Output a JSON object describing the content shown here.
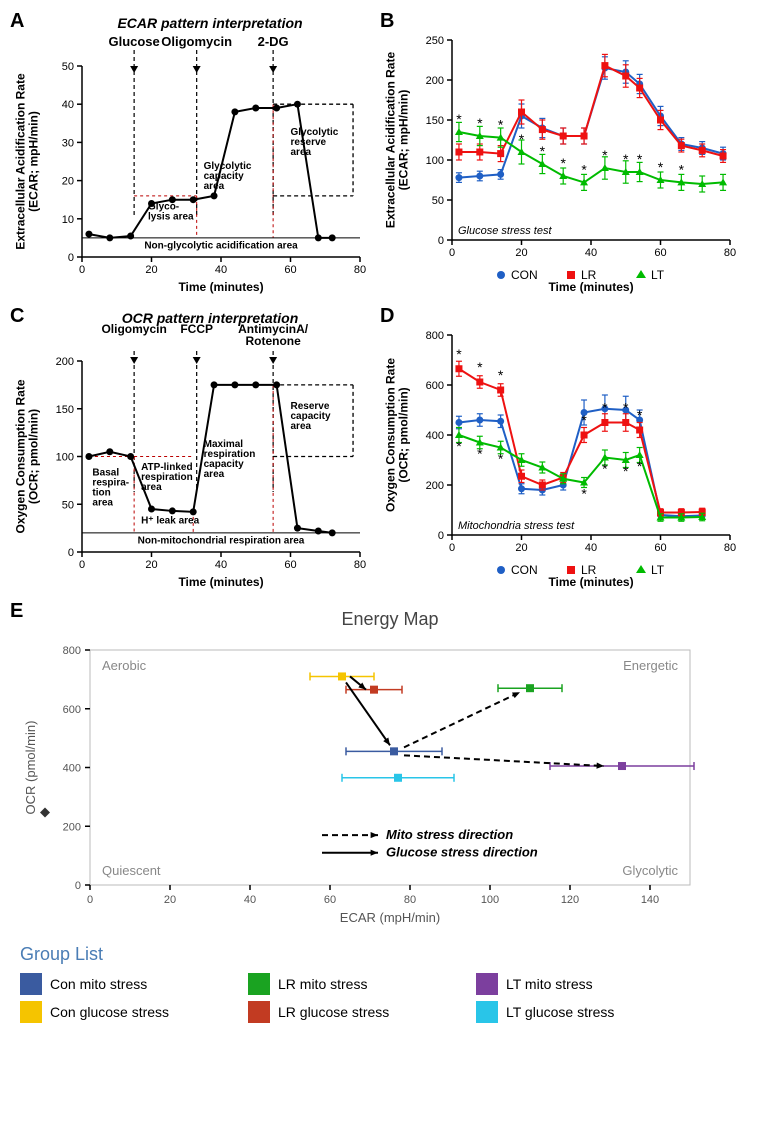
{
  "panelA": {
    "label": "A",
    "title": "ECAR pattern interpretation",
    "ylabel": "Extracellular Acidification Rate\n(ECAR; mpH/min)",
    "xlabel": "Time (minutes)",
    "xlim": [
      0,
      80
    ],
    "xticks": [
      0,
      20,
      40,
      60,
      80
    ],
    "ylim": [
      0,
      50
    ],
    "yticks": [
      0,
      10,
      20,
      30,
      40,
      50
    ],
    "injections": [
      {
        "label": "Glucose",
        "x": 15
      },
      {
        "label": "Oligomycin",
        "x": 33
      },
      {
        "label": "2-DG",
        "x": 55
      }
    ],
    "annotations": {
      "glyco": "Glyco-\nlysis area",
      "glycap": "Glycolytic\ncapacity\narea",
      "glyres": "Glycolytic\nreserve\narea",
      "nonglyc": "Non-glycolytic acidification area"
    },
    "series": {
      "color": "#000",
      "x": [
        2,
        8,
        14,
        20,
        26,
        32,
        38,
        44,
        50,
        56,
        62,
        68,
        72
      ],
      "y": [
        6,
        5,
        5.5,
        14,
        15,
        15,
        16,
        38,
        39,
        39,
        40,
        5,
        5
      ]
    }
  },
  "panelB": {
    "label": "B",
    "ylabel": "Extracellular Acidification Rate\n(ECAR; mpH/min)",
    "xlabel": "Time (minutes)",
    "note": "Glucose stress test",
    "xlim": [
      0,
      80
    ],
    "xticks": [
      0,
      20,
      40,
      60,
      80
    ],
    "ylim": [
      0,
      250
    ],
    "yticks": [
      0,
      50,
      100,
      150,
      200,
      250
    ],
    "legend": [
      {
        "name": "CON",
        "color": "#1f5fc5",
        "marker": "circle"
      },
      {
        "name": "LR",
        "color": "#e11",
        "marker": "square"
      },
      {
        "name": "LT",
        "color": "#0b0",
        "marker": "triangle"
      }
    ],
    "series": {
      "CON": {
        "x": [
          2,
          8,
          14,
          20,
          26,
          32,
          38,
          44,
          50,
          54,
          60,
          66,
          72,
          78
        ],
        "y": [
          78,
          80,
          82,
          155,
          140,
          130,
          130,
          215,
          210,
          195,
          155,
          120,
          115,
          108
        ],
        "err": [
          6,
          6,
          6,
          15,
          12,
          10,
          10,
          14,
          14,
          12,
          12,
          8,
          8,
          8
        ]
      },
      "LR": {
        "x": [
          2,
          8,
          14,
          20,
          26,
          32,
          38,
          44,
          50,
          54,
          60,
          66,
          72,
          78
        ],
        "y": [
          110,
          110,
          108,
          160,
          138,
          130,
          130,
          218,
          205,
          190,
          150,
          118,
          112,
          105
        ],
        "err": [
          10,
          10,
          10,
          15,
          12,
          10,
          10,
          14,
          14,
          12,
          12,
          8,
          8,
          8
        ]
      },
      "LT": {
        "x": [
          2,
          8,
          14,
          20,
          26,
          32,
          38,
          44,
          50,
          54,
          60,
          66,
          72,
          78
        ],
        "y": [
          135,
          130,
          128,
          110,
          95,
          80,
          72,
          90,
          85,
          85,
          75,
          72,
          70,
          72
        ],
        "err": [
          12,
          12,
          12,
          15,
          12,
          10,
          10,
          14,
          14,
          12,
          10,
          10,
          10,
          10
        ]
      }
    },
    "sig_x": [
      2,
      8,
      14,
      20,
      26,
      32,
      38,
      44,
      50,
      54,
      60,
      66
    ]
  },
  "panelC": {
    "label": "C",
    "title": "OCR pattern interpretation",
    "ylabel": "Oxygen Consumption Rate\n(OCR; pmol/min)",
    "xlabel": "Time (minutes)",
    "xlim": [
      0,
      80
    ],
    "xticks": [
      0,
      20,
      40,
      60,
      80
    ],
    "ylim": [
      0,
      200
    ],
    "yticks": [
      0,
      50,
      100,
      150,
      200
    ],
    "injections": [
      {
        "label": "Oligomycin",
        "x": 15
      },
      {
        "label": "FCCP",
        "x": 33
      },
      {
        "label": "AntimycinA/\nRotenone",
        "x": 55
      }
    ],
    "annotations": {
      "basal": "Basal\nrespira-\ntion\narea",
      "atp": "ATP-linked\nrespiration\narea",
      "hleak": "H⁺ leak area",
      "maxcap": "Maximal\nrespiration\ncapacity\narea",
      "reserve": "Reserve\ncapacity\narea",
      "nonmito": "Non-mitochondrial respiration area"
    },
    "series": {
      "color": "#000",
      "x": [
        2,
        8,
        14,
        20,
        26,
        32,
        38,
        44,
        50,
        56,
        62,
        68,
        72
      ],
      "y": [
        100,
        105,
        100,
        45,
        43,
        42,
        175,
        175,
        175,
        175,
        25,
        22,
        20
      ]
    }
  },
  "panelD": {
    "label": "D",
    "ylabel": "Oxygen Consumption Rate\n(OCR; pmol/min)",
    "xlabel": "Time (minutes)",
    "note": "Mitochondria stress test",
    "xlim": [
      0,
      80
    ],
    "xticks": [
      0,
      20,
      40,
      60,
      80
    ],
    "ylim": [
      0,
      800
    ],
    "yticks": [
      0,
      200,
      400,
      600,
      800
    ],
    "legend": [
      {
        "name": "CON",
        "color": "#1f5fc5",
        "marker": "circle"
      },
      {
        "name": "LR",
        "color": "#e11",
        "marker": "square"
      },
      {
        "name": "LT",
        "color": "#0b0",
        "marker": "triangle"
      }
    ],
    "series": {
      "CON": {
        "x": [
          2,
          8,
          14,
          20,
          26,
          32,
          38,
          44,
          50,
          54,
          60,
          66,
          72
        ],
        "y": [
          450,
          460,
          455,
          185,
          180,
          200,
          490,
          505,
          500,
          460,
          80,
          75,
          78
        ],
        "err": [
          25,
          25,
          25,
          20,
          20,
          20,
          50,
          55,
          55,
          40,
          15,
          15,
          15
        ]
      },
      "LR": {
        "x": [
          2,
          8,
          14,
          20,
          26,
          32,
          38,
          44,
          50,
          54,
          60,
          66,
          72
        ],
        "y": [
          665,
          612,
          580,
          235,
          200,
          230,
          400,
          450,
          450,
          420,
          90,
          90,
          92
        ],
        "err": [
          30,
          25,
          25,
          25,
          20,
          20,
          30,
          35,
          35,
          30,
          15,
          15,
          15
        ]
      },
      "LT": {
        "x": [
          2,
          8,
          14,
          20,
          26,
          32,
          38,
          44,
          50,
          54,
          60,
          66,
          72
        ],
        "y": [
          400,
          370,
          350,
          300,
          270,
          225,
          210,
          310,
          300,
          320,
          70,
          70,
          72
        ],
        "err": [
          30,
          25,
          25,
          25,
          22,
          20,
          20,
          30,
          30,
          30,
          15,
          15,
          15
        ]
      }
    },
    "sig_x": [
      2,
      8,
      14,
      38,
      44,
      50,
      54
    ]
  },
  "panelE": {
    "label": "E",
    "title": "Energy Map",
    "xlabel": "ECAR (mpH/min)",
    "ylabel": "OCR (pmol/min)",
    "xlim": [
      0,
      150
    ],
    "xticks": [
      0,
      20,
      40,
      60,
      80,
      100,
      120,
      140
    ],
    "ylim": [
      0,
      800
    ],
    "yticks": [
      0,
      200,
      400,
      600,
      800
    ],
    "corners": {
      "tl": "Aerobic",
      "tr": "Energetic",
      "bl": "Quiescent",
      "br": "Glycolytic"
    },
    "legend_arrows": [
      {
        "label": "Mito stress direction",
        "dashed": true
      },
      {
        "label": "Glucose stress direction",
        "dashed": false
      }
    ],
    "points": [
      {
        "id": "con-glucose",
        "color": "#f5c400",
        "x": 63,
        "y": 710,
        "ex": 8,
        "ey": 12
      },
      {
        "id": "lr-glucose",
        "color": "#c23b22",
        "x": 71,
        "y": 665,
        "ex": 7,
        "ey": 12
      },
      {
        "id": "con-mito",
        "color": "#3a5ba0",
        "x": 76,
        "y": 455,
        "ex": 12,
        "ey": 12
      },
      {
        "id": "lt-glucose",
        "color": "#29c5e8",
        "x": 77,
        "y": 365,
        "ex": 14,
        "ey": 12
      },
      {
        "id": "lr-mito",
        "color": "#1aa321",
        "x": 110,
        "y": 670,
        "ex": 8,
        "ey": 12
      },
      {
        "id": "lt-mito",
        "color": "#7c3f9e",
        "x": 133,
        "y": 405,
        "ex": 18,
        "ey": 10
      }
    ]
  },
  "groupList": {
    "title": "Group List",
    "items": [
      {
        "color": "#3a5ba0",
        "label": "Con   mito stress"
      },
      {
        "color": "#1aa321",
        "label": "LR   mito stress"
      },
      {
        "color": "#7c3f9e",
        "label": "LT   mito stress"
      },
      {
        "color": "#f5c400",
        "label": "Con   glucose stress"
      },
      {
        "color": "#c23b22",
        "label": "LR   glucose stress"
      },
      {
        "color": "#29c5e8",
        "label": "LT   glucose stress"
      }
    ]
  }
}
